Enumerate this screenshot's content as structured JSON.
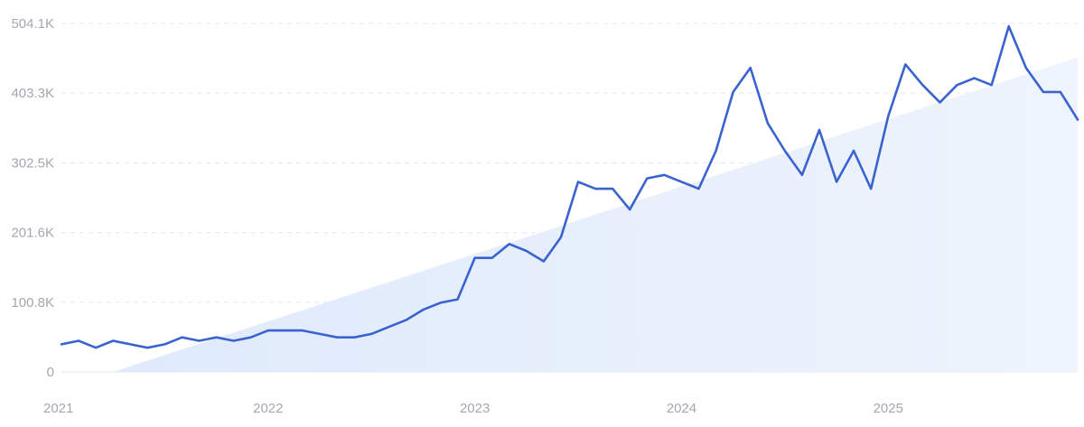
{
  "chart_data": {
    "type": "line",
    "title": "",
    "xlabel": "",
    "ylabel": "",
    "x_tick_labels": [
      "2021",
      "2022",
      "2023",
      "2024",
      "2025"
    ],
    "y_tick_labels": [
      "0",
      "100.8K",
      "201.6K",
      "302.5K",
      "403.3K",
      "504.1K"
    ],
    "y_tick_values": [
      0,
      100800,
      201600,
      302500,
      403300,
      504100
    ],
    "ylim": [
      0,
      504100
    ],
    "xlim": [
      "2021-01",
      "2025-12"
    ],
    "grid": "horizontal dashed",
    "legend": "none",
    "colors": {
      "line": "#3a63cf",
      "trend_fill": "#ddeafb",
      "grid": "#e3e7ee",
      "axis_text": "#a4a7ae"
    },
    "series": [
      {
        "x": [
          "2021-01",
          "2021-02",
          "2021-03",
          "2021-04",
          "2021-05",
          "2021-06",
          "2021-07",
          "2021-08",
          "2021-09",
          "2021-10",
          "2021-11",
          "2021-12",
          "2022-01",
          "2022-02",
          "2022-03",
          "2022-04",
          "2022-05",
          "2022-06",
          "2022-07",
          "2022-08",
          "2022-09",
          "2022-10",
          "2022-11",
          "2022-12",
          "2023-01",
          "2023-02",
          "2023-03",
          "2023-04",
          "2023-05",
          "2023-06",
          "2023-07",
          "2023-08",
          "2023-09",
          "2023-10",
          "2023-11",
          "2023-12",
          "2024-01",
          "2024-02",
          "2024-03",
          "2024-04",
          "2024-05",
          "2024-06",
          "2024-07",
          "2024-08",
          "2024-09",
          "2024-10",
          "2024-11",
          "2024-12",
          "2025-01",
          "2025-02",
          "2025-03",
          "2025-04",
          "2025-05",
          "2025-06",
          "2025-07",
          "2025-08",
          "2025-09",
          "2025-10",
          "2025-11",
          "2025-12"
        ],
        "values": [
          40000,
          45000,
          35000,
          45000,
          40000,
          35000,
          40000,
          50000,
          45000,
          50000,
          45000,
          50000,
          60000,
          60000,
          60000,
          55000,
          50000,
          50000,
          55000,
          65000,
          75000,
          90000,
          100000,
          105000,
          165000,
          165000,
          185000,
          175000,
          160000,
          195000,
          275000,
          265000,
          265000,
          235000,
          280000,
          285000,
          275000,
          265000,
          320000,
          405000,
          440000,
          360000,
          320000,
          285000,
          350000,
          275000,
          320000,
          265000,
          370000,
          445000,
          415000,
          390000,
          415000,
          425000,
          415000,
          500000,
          440000,
          405000,
          405000,
          365000
        ]
      }
    ],
    "trend_area": {
      "x": [
        "2021-04",
        "2025-12"
      ],
      "values": [
        0,
        455000
      ]
    }
  }
}
